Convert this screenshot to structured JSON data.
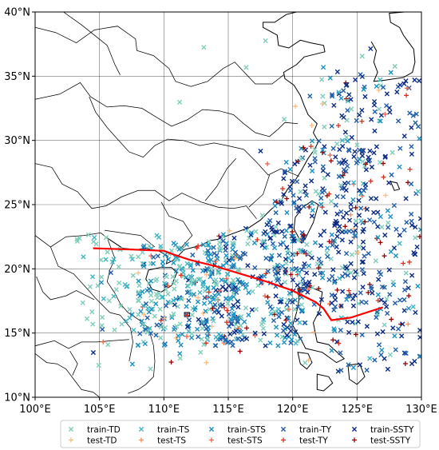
{
  "chart_data": {
    "type": "scatter",
    "title": "",
    "xlabel": "",
    "ylabel": "",
    "xlim": [
      100,
      130
    ],
    "ylim": [
      10,
      40
    ],
    "grid": true,
    "x_ticks": [
      100,
      105,
      110,
      115,
      120,
      125,
      130
    ],
    "y_ticks": [
      10,
      15,
      20,
      25,
      30,
      35,
      40
    ],
    "x_tick_labels": [
      "100°E",
      "105°E",
      "110°E",
      "115°E",
      "120°E",
      "125°E",
      "130°E"
    ],
    "y_tick_labels": [
      "10°N",
      "15°N",
      "20°N",
      "25°N",
      "30°N",
      "35°N",
      "40°N"
    ],
    "legend_position": "bottom",
    "series": [
      {
        "name": "train-TD",
        "marker": "x",
        "color": "#7fcdbb"
      },
      {
        "name": "test-TD",
        "marker": "+",
        "color": "#fdbb84"
      },
      {
        "name": "train-TS",
        "marker": "x",
        "color": "#41b6c4"
      },
      {
        "name": "test-TS",
        "marker": "+",
        "color": "#fc8d59"
      },
      {
        "name": "train-STS",
        "marker": "x",
        "color": "#1d91c0"
      },
      {
        "name": "test-STS",
        "marker": "+",
        "color": "#ef6548"
      },
      {
        "name": "train-TY",
        "marker": "x",
        "color": "#225ea8"
      },
      {
        "name": "test-TY",
        "marker": "+",
        "color": "#d7301f"
      },
      {
        "name": "train-SSTY",
        "marker": "x",
        "color": "#0c2c84"
      },
      {
        "name": "test-SSTY",
        "marker": "+",
        "color": "#990000"
      }
    ],
    "track": {
      "color": "#ff0000",
      "lon": [
        104.5,
        107.5,
        110.0,
        110.8,
        112.0,
        114.0,
        116.0,
        118.0,
        120.0,
        121.8,
        122.4,
        123.0,
        124.5,
        127.0
      ],
      "lat": [
        21.6,
        21.5,
        21.4,
        21.1,
        20.7,
        20.2,
        19.6,
        19.0,
        18.3,
        17.4,
        16.9,
        16.0,
        16.2,
        17.0
      ]
    }
  }
}
